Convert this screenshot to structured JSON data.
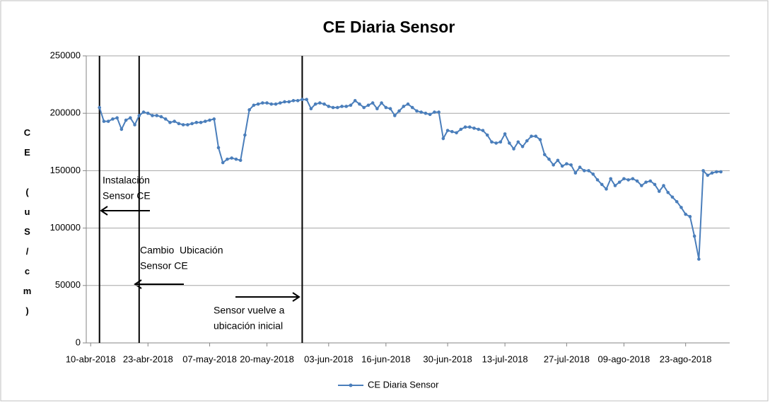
{
  "chart_data": {
    "type": "line",
    "title": "CE Diaria Sensor",
    "y_label": "CE (uS/cm)",
    "x": [
      "2018-04-12",
      "2018-04-13",
      "2018-04-14",
      "2018-04-15",
      "2018-04-16",
      "2018-04-17",
      "2018-04-18",
      "2018-04-19",
      "2018-04-20",
      "2018-04-21",
      "2018-04-22",
      "2018-04-23",
      "2018-04-24",
      "2018-04-25",
      "2018-04-26",
      "2018-04-27",
      "2018-04-28",
      "2018-04-29",
      "2018-04-30",
      "2018-05-01",
      "2018-05-02",
      "2018-05-03",
      "2018-05-04",
      "2018-05-05",
      "2018-05-06",
      "2018-05-07",
      "2018-05-08",
      "2018-05-09",
      "2018-05-10",
      "2018-05-11",
      "2018-05-12",
      "2018-05-13",
      "2018-05-14",
      "2018-05-15",
      "2018-05-16",
      "2018-05-17",
      "2018-05-18",
      "2018-05-19",
      "2018-05-20",
      "2018-05-21",
      "2018-05-22",
      "2018-05-23",
      "2018-05-24",
      "2018-05-25",
      "2018-05-26",
      "2018-05-27",
      "2018-05-28",
      "2018-05-29",
      "2018-05-30",
      "2018-05-31",
      "2018-06-01",
      "2018-06-02",
      "2018-06-03",
      "2018-06-04",
      "2018-06-05",
      "2018-06-06",
      "2018-06-07",
      "2018-06-08",
      "2018-06-09",
      "2018-06-10",
      "2018-06-11",
      "2018-06-12",
      "2018-06-13",
      "2018-06-14",
      "2018-06-15",
      "2018-06-16",
      "2018-06-17",
      "2018-06-18",
      "2018-06-19",
      "2018-06-20",
      "2018-06-21",
      "2018-06-22",
      "2018-06-23",
      "2018-06-24",
      "2018-06-25",
      "2018-06-26",
      "2018-06-27",
      "2018-06-28",
      "2018-06-29",
      "2018-06-30",
      "2018-07-01",
      "2018-07-02",
      "2018-07-03",
      "2018-07-04",
      "2018-07-05",
      "2018-07-06",
      "2018-07-07",
      "2018-07-08",
      "2018-07-09",
      "2018-07-10",
      "2018-07-11",
      "2018-07-12",
      "2018-07-13",
      "2018-07-14",
      "2018-07-15",
      "2018-07-16",
      "2018-07-17",
      "2018-07-18",
      "2018-07-19",
      "2018-07-20",
      "2018-07-21",
      "2018-07-22",
      "2018-07-23",
      "2018-07-24",
      "2018-07-25",
      "2018-07-26",
      "2018-07-27",
      "2018-07-28",
      "2018-07-29",
      "2018-07-30",
      "2018-07-31",
      "2018-08-01",
      "2018-08-02",
      "2018-08-03",
      "2018-08-04",
      "2018-08-05",
      "2018-08-06",
      "2018-08-07",
      "2018-08-08",
      "2018-08-09",
      "2018-08-10",
      "2018-08-11",
      "2018-08-12",
      "2018-08-13",
      "2018-08-14",
      "2018-08-15",
      "2018-08-16",
      "2018-08-17",
      "2018-08-18",
      "2018-08-19",
      "2018-08-20",
      "2018-08-21",
      "2018-08-22",
      "2018-08-23",
      "2018-08-24",
      "2018-08-25",
      "2018-08-26",
      "2018-08-27",
      "2018-08-28",
      "2018-08-29",
      "2018-08-30",
      "2018-08-31"
    ],
    "series": [
      {
        "name": "CE Diaria Sensor",
        "color": "#4a7ebb",
        "values": [
          205000,
          193000,
          193000,
          195000,
          196000,
          186000,
          194000,
          196000,
          190000,
          198000,
          201000,
          200000,
          198000,
          198000,
          197000,
          195000,
          192000,
          193000,
          191000,
          190000,
          190000,
          191000,
          192000,
          192000,
          193000,
          194000,
          195000,
          170000,
          157000,
          160000,
          161000,
          160000,
          159000,
          181000,
          203000,
          207000,
          208000,
          209000,
          209000,
          208000,
          208000,
          209000,
          210000,
          210000,
          211000,
          211000,
          212000,
          212000,
          204000,
          208000,
          209000,
          208000,
          206000,
          205000,
          205000,
          206000,
          206000,
          207000,
          211000,
          208000,
          205000,
          207000,
          209000,
          204000,
          209000,
          205000,
          204000,
          198000,
          202000,
          206000,
          208000,
          205000,
          202000,
          201000,
          200000,
          199000,
          201000,
          201000,
          178000,
          185000,
          184000,
          183000,
          186000,
          188000,
          188000,
          187000,
          186000,
          185000,
          181000,
          175000,
          174000,
          175000,
          182000,
          174000,
          169000,
          175000,
          171000,
          176000,
          180000,
          180000,
          177000,
          164000,
          160000,
          155000,
          159000,
          154000,
          156000,
          155000,
          148000,
          153000,
          150000,
          150000,
          147000,
          142000,
          138000,
          134000,
          143000,
          137000,
          140000,
          143000,
          142000,
          143000,
          141000,
          137000,
          140000,
          141000,
          138000,
          132000,
          137000,
          131000,
          127000,
          123000,
          118000,
          112000,
          110000,
          93000,
          73000,
          150000,
          146000,
          148000,
          149000,
          149000
        ]
      }
    ],
    "xlim": [
      "2018-04-09",
      "2018-09-02"
    ],
    "xticks": [
      {
        "value": "2018-04-10",
        "label": "10-abr-2018"
      },
      {
        "value": "2018-04-23",
        "label": "23-abr-2018"
      },
      {
        "value": "2018-05-07",
        "label": "07-may-2018"
      },
      {
        "value": "2018-05-20",
        "label": "20-may-2018"
      },
      {
        "value": "2018-06-03",
        "label": "03-jun-2018"
      },
      {
        "value": "2018-06-16",
        "label": "16-jun-2018"
      },
      {
        "value": "2018-06-30",
        "label": "30-jun-2018"
      },
      {
        "value": "2018-07-13",
        "label": "13-jul-2018"
      },
      {
        "value": "2018-07-27",
        "label": "27-jul-2018"
      },
      {
        "value": "2018-08-09",
        "label": "09-ago-2018"
      },
      {
        "value": "2018-08-23",
        "label": "23-ago-2018"
      }
    ],
    "ylim": [
      0,
      250000
    ],
    "yticks": [
      0,
      50000,
      100000,
      150000,
      200000,
      250000
    ],
    "grid": true,
    "vlines": [
      "2018-04-12",
      "2018-04-21",
      "2018-05-28"
    ],
    "annotations": [
      [
        "Instalación",
        "Sensor CE"
      ],
      [
        "Cambio  Ubicación",
        "Sensor CE"
      ],
      [
        "Sensor vuelve a",
        "ubicación inicial"
      ]
    ],
    "legend": "bottom"
  }
}
